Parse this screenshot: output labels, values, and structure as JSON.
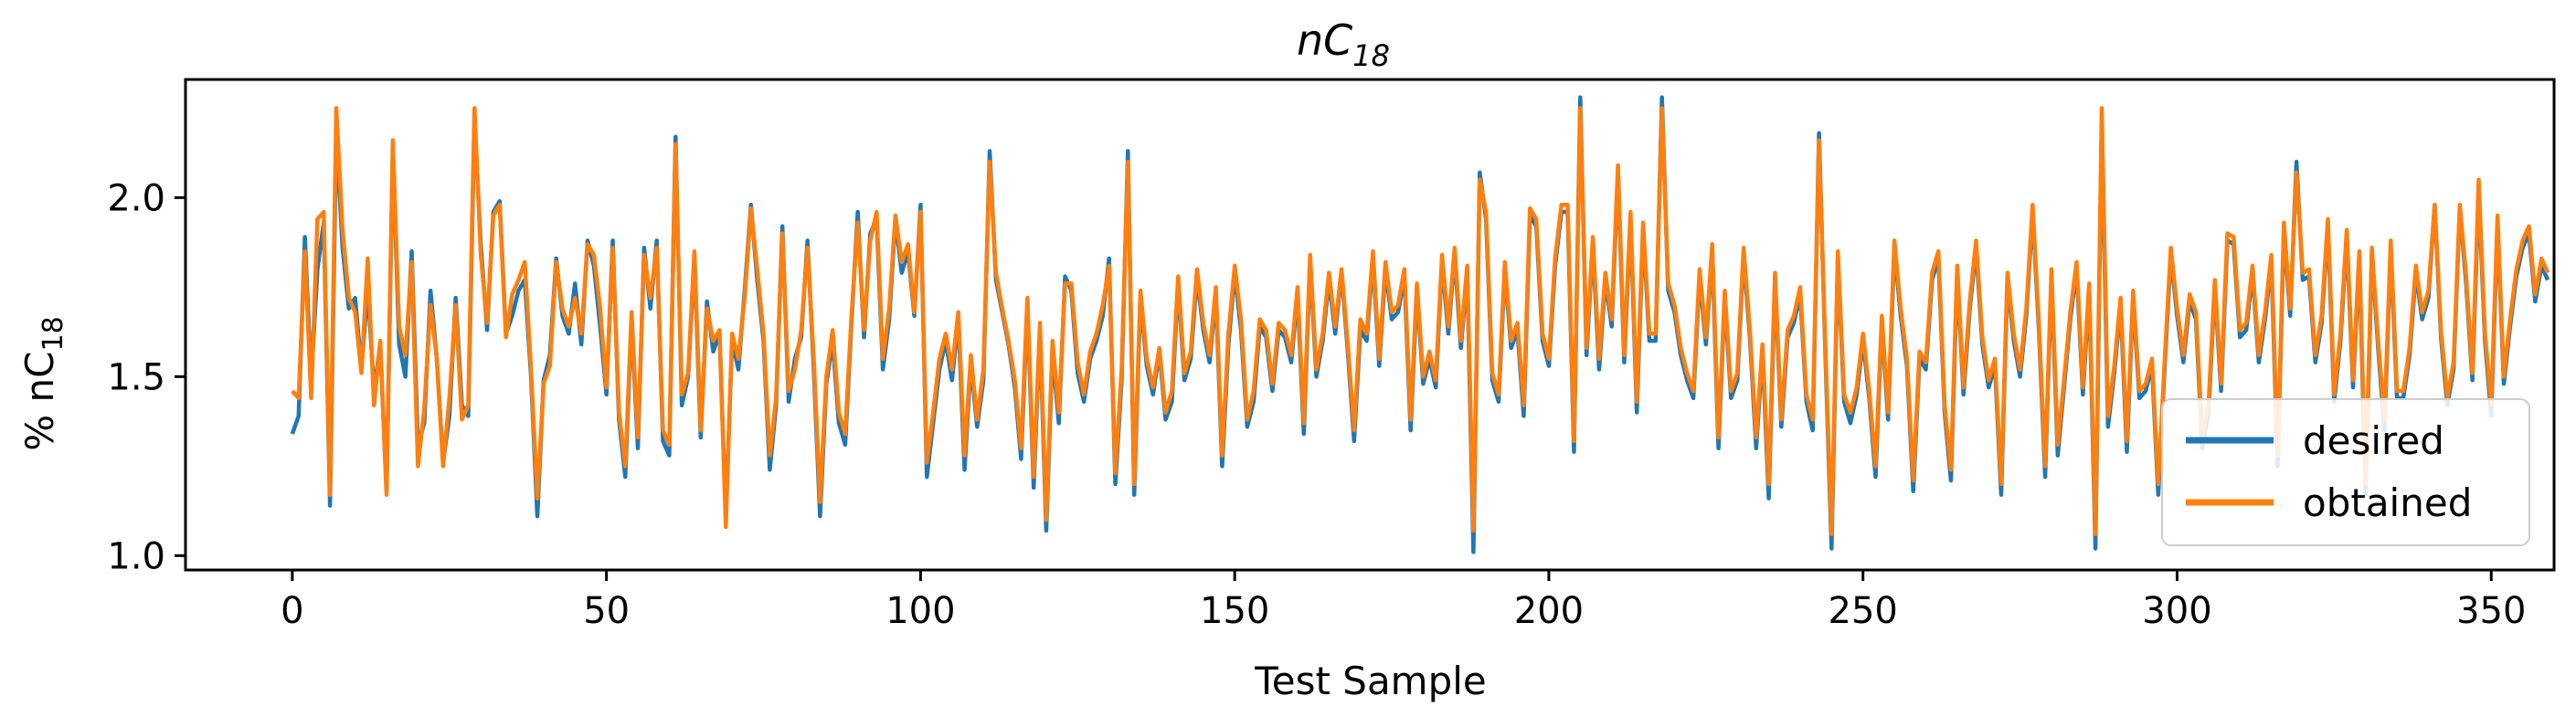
{
  "chart_data": {
    "type": "line",
    "title": {
      "main": "nC",
      "sub": "18"
    },
    "xlabel": "Test Sample",
    "ylabel": {
      "prefix": "% nC",
      "sub": "18"
    },
    "xlim": [
      -17,
      360
    ],
    "ylim": [
      0.96,
      2.33
    ],
    "xticks": [
      0,
      50,
      100,
      150,
      200,
      250,
      300,
      350
    ],
    "yticks": [
      1.0,
      1.5,
      2.0
    ],
    "ytick_labels": [
      "1.0",
      "1.5",
      "2.0"
    ],
    "grid": false,
    "legend_position": "lower right",
    "series": [
      {
        "name": "desired",
        "color": "#1f77b4",
        "y": [
          1.34,
          1.39,
          1.89,
          1.49,
          1.8,
          1.93,
          1.14,
          2.18,
          1.86,
          1.69,
          1.72,
          1.52,
          1.75,
          1.46,
          1.59,
          1.18,
          2.14,
          1.59,
          1.5,
          1.85,
          1.31,
          1.37,
          1.74,
          1.55,
          1.26,
          1.39,
          1.72,
          1.42,
          1.39,
          2.22,
          1.87,
          1.63,
          1.96,
          1.99,
          1.62,
          1.67,
          1.74,
          1.77,
          1.5,
          1.11,
          1.49,
          1.56,
          1.83,
          1.67,
          1.62,
          1.76,
          1.59,
          1.88,
          1.81,
          1.64,
          1.45,
          1.88,
          1.38,
          1.22,
          1.66,
          1.3,
          1.86,
          1.69,
          1.88,
          1.32,
          1.28,
          2.17,
          1.42,
          1.5,
          1.83,
          1.33,
          1.71,
          1.57,
          1.62,
          1.11,
          1.6,
          1.52,
          1.74,
          1.98,
          1.77,
          1.6,
          1.24,
          1.42,
          1.92,
          1.43,
          1.55,
          1.61,
          1.88,
          1.52,
          1.11,
          1.48,
          1.6,
          1.37,
          1.31,
          1.65,
          1.96,
          1.61,
          1.9,
          1.94,
          1.52,
          1.66,
          1.94,
          1.79,
          1.85,
          1.67,
          1.98,
          1.22,
          1.37,
          1.52,
          1.6,
          1.49,
          1.66,
          1.24,
          1.54,
          1.36,
          1.49,
          2.13,
          1.77,
          1.68,
          1.59,
          1.47,
          1.27,
          1.7,
          1.19,
          1.63,
          1.07,
          1.57,
          1.37,
          1.78,
          1.74,
          1.51,
          1.43,
          1.55,
          1.6,
          1.67,
          1.83,
          1.2,
          1.49,
          2.13,
          1.17,
          1.72,
          1.53,
          1.45,
          1.57,
          1.38,
          1.43,
          1.76,
          1.49,
          1.55,
          1.78,
          1.63,
          1.54,
          1.73,
          1.25,
          1.59,
          1.79,
          1.63,
          1.36,
          1.43,
          1.64,
          1.61,
          1.46,
          1.63,
          1.61,
          1.54,
          1.73,
          1.34,
          1.82,
          1.5,
          1.6,
          1.77,
          1.62,
          1.79,
          1.57,
          1.32,
          1.63,
          1.6,
          1.83,
          1.53,
          1.8,
          1.66,
          1.68,
          1.78,
          1.35,
          1.74,
          1.48,
          1.55,
          1.47,
          1.82,
          1.62,
          1.84,
          1.58,
          1.79,
          1.01,
          2.07,
          1.94,
          1.49,
          1.43,
          1.8,
          1.58,
          1.63,
          1.39,
          1.95,
          1.92,
          1.6,
          1.53,
          1.81,
          1.96,
          1.96,
          1.29,
          2.28,
          1.56,
          1.87,
          1.52,
          1.77,
          1.64,
          2.07,
          1.54,
          1.94,
          1.4,
          1.91,
          1.6,
          1.6,
          2.28,
          1.74,
          1.68,
          1.56,
          1.49,
          1.44,
          1.78,
          1.59,
          1.85,
          1.3,
          1.72,
          1.44,
          1.49,
          1.84,
          1.61,
          1.3,
          1.57,
          1.16,
          1.77,
          1.36,
          1.61,
          1.65,
          1.73,
          1.43,
          1.35,
          2.18,
          1.57,
          1.02,
          1.83,
          1.43,
          1.37,
          1.45,
          1.6,
          1.44,
          1.22,
          1.65,
          1.38,
          1.86,
          1.67,
          1.53,
          1.18,
          1.55,
          1.52,
          1.77,
          1.83,
          1.4,
          1.21,
          1.79,
          1.45,
          1.69,
          1.86,
          1.59,
          1.47,
          1.53,
          1.17,
          1.77,
          1.6,
          1.5,
          1.67,
          1.96,
          1.63,
          1.22,
          1.78,
          1.28,
          1.47,
          1.66,
          1.8,
          1.45,
          1.74,
          1.02,
          2.2,
          1.36,
          1.51,
          1.7,
          1.29,
          1.72,
          1.44,
          1.46,
          1.53,
          1.17,
          1.52,
          1.84,
          1.67,
          1.54,
          1.71,
          1.66,
          1.3,
          1.4,
          1.75,
          1.46,
          1.88,
          1.87,
          1.61,
          1.63,
          1.79,
          1.54,
          1.66,
          1.82,
          1.25,
          1.91,
          1.67,
          2.1,
          1.77,
          1.78,
          1.54,
          1.65,
          1.92,
          1.43,
          1.6,
          1.89,
          1.47,
          1.83,
          1.17,
          1.84,
          1.58,
          1.35,
          1.86,
          1.44,
          1.44,
          1.56,
          1.79,
          1.66,
          1.72,
          1.98,
          1.61,
          1.42,
          1.52,
          1.97,
          1.76,
          1.49,
          2.02,
          1.6,
          1.39,
          1.93,
          1.48,
          1.64,
          1.78,
          1.86,
          1.9,
          1.71,
          1.81,
          1.77
        ]
      },
      {
        "name": "obtained",
        "color": "#ff7f0e",
        "y": [
          1.46,
          1.44,
          1.85,
          1.44,
          1.94,
          1.96,
          1.17,
          2.25,
          1.91,
          1.72,
          1.68,
          1.51,
          1.83,
          1.42,
          1.6,
          1.17,
          2.16,
          1.64,
          1.56,
          1.82,
          1.25,
          1.41,
          1.7,
          1.55,
          1.25,
          1.44,
          1.7,
          1.38,
          1.42,
          2.25,
          1.84,
          1.65,
          1.95,
          1.98,
          1.61,
          1.73,
          1.77,
          1.82,
          1.52,
          1.16,
          1.48,
          1.53,
          1.82,
          1.69,
          1.64,
          1.72,
          1.62,
          1.87,
          1.84,
          1.69,
          1.47,
          1.86,
          1.4,
          1.25,
          1.68,
          1.33,
          1.84,
          1.72,
          1.86,
          1.35,
          1.31,
          2.15,
          1.45,
          1.51,
          1.85,
          1.35,
          1.69,
          1.6,
          1.63,
          1.08,
          1.62,
          1.55,
          1.72,
          1.97,
          1.8,
          1.62,
          1.28,
          1.44,
          1.9,
          1.46,
          1.52,
          1.63,
          1.86,
          1.55,
          1.15,
          1.5,
          1.63,
          1.4,
          1.34,
          1.67,
          1.93,
          1.63,
          1.88,
          1.96,
          1.55,
          1.69,
          1.95,
          1.82,
          1.87,
          1.68,
          1.96,
          1.26,
          1.4,
          1.55,
          1.62,
          1.52,
          1.68,
          1.28,
          1.56,
          1.38,
          1.52,
          2.1,
          1.79,
          1.69,
          1.6,
          1.49,
          1.3,
          1.72,
          1.22,
          1.65,
          1.1,
          1.6,
          1.4,
          1.76,
          1.76,
          1.54,
          1.45,
          1.57,
          1.62,
          1.7,
          1.81,
          1.23,
          1.52,
          2.1,
          1.2,
          1.74,
          1.55,
          1.47,
          1.58,
          1.4,
          1.46,
          1.78,
          1.51,
          1.57,
          1.8,
          1.65,
          1.56,
          1.75,
          1.28,
          1.62,
          1.81,
          1.66,
          1.38,
          1.46,
          1.66,
          1.63,
          1.48,
          1.65,
          1.63,
          1.56,
          1.75,
          1.37,
          1.84,
          1.52,
          1.62,
          1.79,
          1.64,
          1.8,
          1.59,
          1.35,
          1.66,
          1.62,
          1.85,
          1.55,
          1.82,
          1.68,
          1.7,
          1.8,
          1.38,
          1.76,
          1.5,
          1.57,
          1.49,
          1.84,
          1.64,
          1.86,
          1.6,
          1.81,
          1.07,
          2.05,
          1.96,
          1.51,
          1.45,
          1.82,
          1.6,
          1.65,
          1.42,
          1.97,
          1.94,
          1.62,
          1.55,
          1.83,
          1.98,
          1.98,
          1.32,
          2.25,
          1.58,
          1.89,
          1.55,
          1.79,
          1.66,
          2.09,
          1.56,
          1.96,
          1.43,
          1.93,
          1.62,
          1.62,
          2.25,
          1.76,
          1.7,
          1.58,
          1.51,
          1.46,
          1.8,
          1.61,
          1.87,
          1.33,
          1.74,
          1.46,
          1.51,
          1.86,
          1.63,
          1.33,
          1.59,
          1.2,
          1.79,
          1.38,
          1.63,
          1.67,
          1.75,
          1.45,
          1.38,
          2.16,
          1.59,
          1.06,
          1.85,
          1.45,
          1.4,
          1.47,
          1.62,
          1.46,
          1.25,
          1.67,
          1.4,
          1.88,
          1.69,
          1.55,
          1.21,
          1.57,
          1.54,
          1.79,
          1.85,
          1.42,
          1.24,
          1.81,
          1.47,
          1.71,
          1.88,
          1.61,
          1.49,
          1.55,
          1.2,
          1.79,
          1.62,
          1.52,
          1.69,
          1.98,
          1.65,
          1.25,
          1.8,
          1.31,
          1.49,
          1.68,
          1.82,
          1.47,
          1.76,
          1.06,
          2.25,
          1.39,
          1.53,
          1.72,
          1.32,
          1.74,
          1.46,
          1.48,
          1.55,
          1.2,
          1.54,
          1.86,
          1.69,
          1.56,
          1.73,
          1.68,
          1.33,
          1.42,
          1.77,
          1.48,
          1.9,
          1.89,
          1.63,
          1.65,
          1.81,
          1.56,
          1.68,
          1.84,
          1.28,
          1.93,
          1.69,
          2.07,
          1.79,
          1.8,
          1.56,
          1.67,
          1.94,
          1.45,
          1.62,
          1.91,
          1.49,
          1.85,
          1.2,
          1.86,
          1.6,
          1.38,
          1.88,
          1.46,
          1.46,
          1.58,
          1.81,
          1.68,
          1.74,
          1.98,
          1.63,
          1.44,
          1.54,
          1.98,
          1.78,
          1.51,
          2.05,
          1.62,
          1.42,
          1.95,
          1.5,
          1.66,
          1.8,
          1.88,
          1.92,
          1.73,
          1.83,
          1.79
        ]
      }
    ]
  }
}
